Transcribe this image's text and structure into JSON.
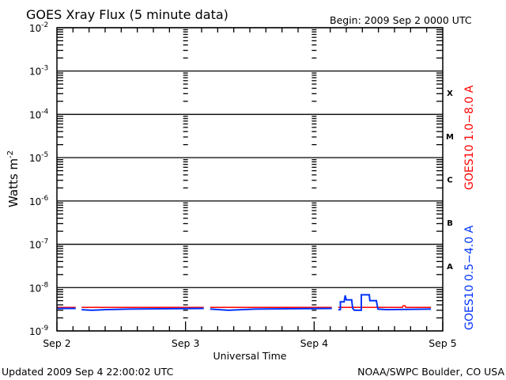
{
  "chart_data": {
    "type": "line",
    "title": "GOES Xray Flux (5 minute data)",
    "begin_label": "Begin:  2009 Sep 2 0000 UTC",
    "xlabel": "Universal Time",
    "ylabel": "Watts m",
    "ylabel_sup": "-2",
    "yscale": "log",
    "ylim": [
      1e-09,
      0.01
    ],
    "xlim_hours": [
      0,
      72
    ],
    "x_ticks": [
      {
        "hour": 0,
        "label": "Sep 2"
      },
      {
        "hour": 24,
        "label": "Sep 3"
      },
      {
        "hour": 48,
        "label": "Sep 4"
      },
      {
        "hour": 72,
        "label": "Sep 5"
      }
    ],
    "y_ticks": [
      {
        "exp": -2,
        "label": "10",
        "sup": "-2"
      },
      {
        "exp": -3,
        "label": "10",
        "sup": "-3"
      },
      {
        "exp": -4,
        "label": "10",
        "sup": "-4"
      },
      {
        "exp": -5,
        "label": "10",
        "sup": "-5"
      },
      {
        "exp": -6,
        "label": "10",
        "sup": "-6"
      },
      {
        "exp": -7,
        "label": "10",
        "sup": "-7"
      },
      {
        "exp": -8,
        "label": "10",
        "sup": "-8"
      },
      {
        "exp": -9,
        "label": "10",
        "sup": "-9"
      }
    ],
    "flare_classes": [
      {
        "exp": -4,
        "label": "X"
      },
      {
        "exp": -5,
        "label": "M"
      },
      {
        "exp": -6,
        "label": "C"
      },
      {
        "exp": -7,
        "label": "B"
      },
      {
        "exp": -8,
        "label": "A"
      }
    ],
    "grid": true,
    "series": [
      {
        "name": "GOES10 1.0−8.0 A",
        "color": "#ff0000",
        "segments": [
          [
            [
              0,
              3.5e-09
            ],
            [
              3.5,
              3.5e-09
            ]
          ],
          [
            [
              4.6,
              3.5e-09
            ],
            [
              27.4,
              3.5e-09
            ]
          ],
          [
            [
              28.6,
              3.5e-09
            ],
            [
              51.3,
              3.5e-09
            ]
          ],
          [
            [
              52.5,
              3.5e-09
            ],
            [
              64.5,
              3.5e-09
            ],
            [
              64.6,
              3.8e-09
            ],
            [
              65.0,
              3.8e-09
            ],
            [
              65.1,
              3.5e-09
            ],
            [
              69.8,
              3.5e-09
            ]
          ]
        ]
      },
      {
        "name": "GOES10 0.5−4.0 A",
        "color": "#0033ff",
        "segments": [
          [
            [
              0,
              3.3e-09
            ],
            [
              3.5,
              3.3e-09
            ]
          ],
          [
            [
              4.6,
              3.1e-09
            ],
            [
              6.5,
              3e-09
            ],
            [
              9.0,
              3.1e-09
            ],
            [
              13.5,
              3.2e-09
            ],
            [
              27.4,
              3.3e-09
            ]
          ],
          [
            [
              28.6,
              3.2e-09
            ],
            [
              32.0,
              3e-09
            ],
            [
              37.0,
              3.2e-09
            ],
            [
              51.3,
              3.3e-09
            ]
          ],
          [
            [
              52.5,
              3.1e-09
            ],
            [
              52.9,
              3.1e-09
            ],
            [
              52.9,
              4.7e-09
            ],
            [
              53.6,
              4.7e-09
            ],
            [
              53.8,
              6.6e-09
            ],
            [
              54.0,
              5.2e-09
            ],
            [
              55.0,
              5.2e-09
            ],
            [
              55.2,
              3.3e-09
            ],
            [
              55.5,
              3e-09
            ],
            [
              56.8,
              3e-09
            ],
            [
              56.8,
              6.8e-09
            ],
            [
              58.3,
              6.8e-09
            ],
            [
              58.4,
              5e-09
            ],
            [
              59.6,
              5e-09
            ],
            [
              59.9,
              3.2e-09
            ],
            [
              61.5,
              3.1e-09
            ],
            [
              69.8,
              3.2e-09
            ]
          ]
        ]
      }
    ]
  },
  "footer": {
    "updated": "Updated 2009 Sep  4 22:00:02 UTC",
    "source": "NOAA/SWPC Boulder, CO USA"
  }
}
